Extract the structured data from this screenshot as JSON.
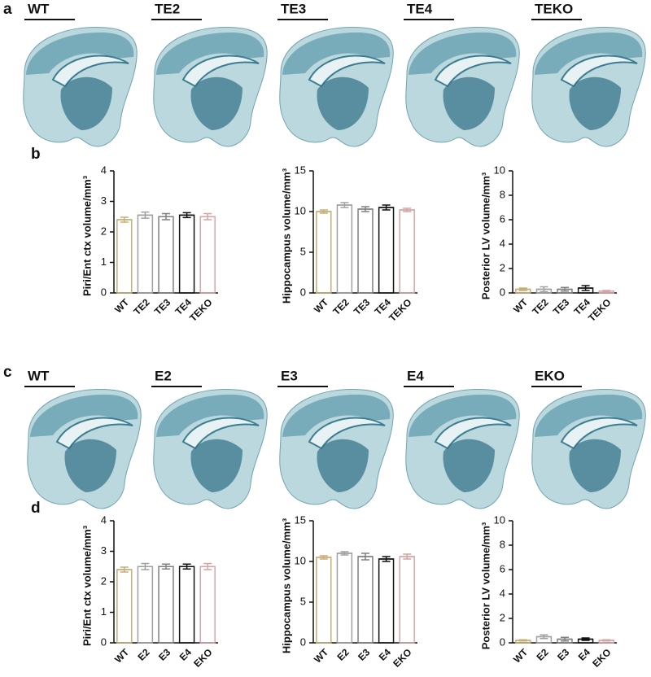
{
  "panels": [
    {
      "letter": "a",
      "labels": [
        "WT",
        "TE2",
        "TE3",
        "TE4",
        "TEKO"
      ]
    },
    {
      "letter": "b"
    },
    {
      "letter": "c",
      "labels": [
        "WT",
        "E2",
        "E3",
        "E4",
        "EKO"
      ]
    },
    {
      "letter": "d"
    }
  ],
  "chart_data": [
    {
      "type": "bar",
      "ylabel": "Piri/Ent ctx volume/mm³",
      "categories": [
        "WT",
        "TE2",
        "TE3",
        "TE4",
        "TEKO"
      ],
      "values": [
        2.4,
        2.55,
        2.5,
        2.55,
        2.5
      ],
      "errors": [
        0.08,
        0.1,
        0.1,
        0.08,
        0.1
      ],
      "colors": [
        "#c8ad76",
        "#a0a0a0",
        "#808080",
        "#111111",
        "#d6a4a4"
      ],
      "ylim": [
        0,
        4
      ],
      "yticks": [
        0,
        1,
        2,
        3,
        4
      ]
    },
    {
      "type": "bar",
      "ylabel": "Hippocampus volume/mm³",
      "categories": [
        "WT",
        "TE2",
        "TE3",
        "TE4",
        "TEKO"
      ],
      "values": [
        10.0,
        10.8,
        10.3,
        10.5,
        10.2
      ],
      "errors": [
        0.2,
        0.3,
        0.3,
        0.3,
        0.2
      ],
      "colors": [
        "#c8ad76",
        "#a0a0a0",
        "#808080",
        "#111111",
        "#d6a4a4"
      ],
      "ylim": [
        0,
        15
      ],
      "yticks": [
        0,
        5,
        10,
        15
      ]
    },
    {
      "type": "bar",
      "ylabel": "Posterior LV volume/mm³",
      "categories": [
        "WT",
        "TE2",
        "TE3",
        "TE4",
        "TEKO"
      ],
      "values": [
        0.3,
        0.3,
        0.3,
        0.4,
        0.15
      ],
      "errors": [
        0.1,
        0.2,
        0.15,
        0.2,
        0.05
      ],
      "colors": [
        "#c8ad76",
        "#a0a0a0",
        "#808080",
        "#111111",
        "#d6a4a4"
      ],
      "ylim": [
        0,
        10
      ],
      "yticks": [
        0,
        2,
        4,
        6,
        8,
        10
      ]
    },
    {
      "type": "bar",
      "ylabel": "Piri/Ent ctx volume/mm³",
      "categories": [
        "WT",
        "E2",
        "E3",
        "E4",
        "EKO"
      ],
      "values": [
        2.4,
        2.5,
        2.5,
        2.5,
        2.5
      ],
      "errors": [
        0.08,
        0.1,
        0.08,
        0.08,
        0.1
      ],
      "colors": [
        "#c8ad76",
        "#a0a0a0",
        "#808080",
        "#111111",
        "#d6a4a4"
      ],
      "ylim": [
        0,
        4
      ],
      "yticks": [
        0,
        1,
        2,
        3,
        4
      ]
    },
    {
      "type": "bar",
      "ylabel": "Hippocampus volume/mm³",
      "categories": [
        "WT",
        "E2",
        "E3",
        "E4",
        "EKO"
      ],
      "values": [
        10.5,
        11.0,
        10.6,
        10.3,
        10.6
      ],
      "errors": [
        0.2,
        0.2,
        0.4,
        0.3,
        0.3
      ],
      "colors": [
        "#c8ad76",
        "#a0a0a0",
        "#808080",
        "#111111",
        "#d6a4a4"
      ],
      "ylim": [
        0,
        15
      ],
      "yticks": [
        0,
        5,
        10,
        15
      ]
    },
    {
      "type": "bar",
      "ylabel": "Posterior LV volume/mm³",
      "categories": [
        "WT",
        "E2",
        "E3",
        "E4",
        "EKO"
      ],
      "values": [
        0.2,
        0.5,
        0.3,
        0.3,
        0.2
      ],
      "errors": [
        0.05,
        0.15,
        0.15,
        0.1,
        0.05
      ],
      "colors": [
        "#c8ad76",
        "#a0a0a0",
        "#808080",
        "#111111",
        "#d6a4a4"
      ],
      "ylim": [
        0,
        10
      ],
      "yticks": [
        0,
        2,
        4,
        6,
        8,
        10
      ]
    }
  ]
}
